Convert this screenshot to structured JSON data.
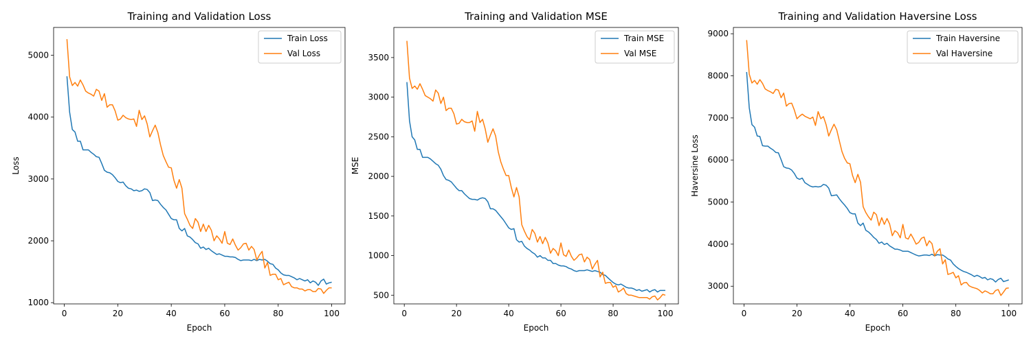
{
  "colors": {
    "train": "#1f77b4",
    "val": "#ff7f0e"
  },
  "chart_data": [
    {
      "type": "line",
      "title": "Training and Validation Loss",
      "xlabel": "Epoch",
      "ylabel": "Loss",
      "xlim": [
        -4,
        105
      ],
      "ylim": [
        980,
        5450
      ],
      "xticks": [
        0,
        20,
        40,
        60,
        80,
        100
      ],
      "yticks": [
        1000,
        2000,
        3000,
        4000,
        5000
      ],
      "legend": "top-right",
      "grid": false,
      "x": [
        1,
        2,
        3,
        4,
        5,
        6,
        7,
        8,
        9,
        10,
        11,
        12,
        13,
        14,
        15,
        16,
        17,
        18,
        19,
        20,
        21,
        22,
        23,
        24,
        25,
        26,
        27,
        28,
        29,
        30,
        31,
        32,
        33,
        34,
        35,
        36,
        37,
        38,
        39,
        40,
        41,
        42,
        43,
        44,
        45,
        46,
        47,
        48,
        49,
        50,
        51,
        52,
        53,
        54,
        55,
        56,
        57,
        58,
        59,
        60,
        61,
        62,
        63,
        64,
        65,
        66,
        67,
        68,
        69,
        70,
        71,
        72,
        73,
        74,
        75,
        76,
        77,
        78,
        79,
        80,
        81,
        82,
        83,
        84,
        85,
        86,
        87,
        88,
        89,
        90,
        91,
        92,
        93,
        94,
        95,
        96,
        97,
        98,
        99,
        100
      ],
      "series": [
        {
          "name": "Train Loss",
          "color": "#1f77b4",
          "values": [
            4660,
            4080,
            3800,
            3760,
            3610,
            3610,
            3470,
            3470,
            3470,
            3430,
            3400,
            3360,
            3350,
            3250,
            3140,
            3110,
            3100,
            3070,
            3020,
            2960,
            2940,
            2950,
            2890,
            2850,
            2840,
            2810,
            2820,
            2800,
            2810,
            2840,
            2830,
            2780,
            2650,
            2660,
            2650,
            2590,
            2540,
            2500,
            2430,
            2360,
            2340,
            2340,
            2200,
            2160,
            2200,
            2080,
            2060,
            2020,
            1970,
            1950,
            1880,
            1900,
            1860,
            1880,
            1840,
            1810,
            1780,
            1790,
            1770,
            1750,
            1750,
            1740,
            1740,
            1730,
            1700,
            1680,
            1690,
            1690,
            1690,
            1680,
            1700,
            1680,
            1700,
            1690,
            1700,
            1670,
            1630,
            1620,
            1560,
            1530,
            1480,
            1450,
            1440,
            1440,
            1420,
            1400,
            1370,
            1390,
            1370,
            1350,
            1370,
            1320,
            1350,
            1330,
            1280,
            1350,
            1380,
            1300,
            1320,
            1330
          ]
        },
        {
          "name": "Val Loss",
          "color": "#ff7f0e",
          "values": [
            5260,
            4650,
            4510,
            4560,
            4500,
            4600,
            4520,
            4420,
            4390,
            4370,
            4340,
            4450,
            4420,
            4270,
            4380,
            4160,
            4200,
            4200,
            4100,
            3950,
            3970,
            4030,
            3990,
            3970,
            3960,
            3970,
            3850,
            4110,
            3960,
            4020,
            3890,
            3680,
            3780,
            3870,
            3750,
            3550,
            3380,
            3280,
            3190,
            3180,
            2980,
            2850,
            2990,
            2850,
            2440,
            2350,
            2250,
            2200,
            2360,
            2300,
            2150,
            2270,
            2150,
            2250,
            2170,
            2000,
            2080,
            2030,
            1960,
            2150,
            1960,
            1940,
            2030,
            1930,
            1850,
            1890,
            1950,
            1960,
            1850,
            1910,
            1860,
            1690,
            1770,
            1830,
            1560,
            1650,
            1440,
            1460,
            1460,
            1370,
            1390,
            1290,
            1310,
            1330,
            1260,
            1240,
            1240,
            1220,
            1220,
            1190,
            1210,
            1210,
            1180,
            1180,
            1230,
            1220,
            1150,
            1200,
            1240,
            1240
          ]
        }
      ]
    },
    {
      "type": "line",
      "title": "Training and Validation MSE",
      "xlabel": "Epoch",
      "ylabel": "MSE",
      "xlim": [
        -4,
        105
      ],
      "ylim": [
        390,
        3880
      ],
      "xticks": [
        0,
        20,
        40,
        60,
        80,
        100
      ],
      "yticks": [
        500,
        1000,
        1500,
        2000,
        2500,
        3000,
        3500
      ],
      "legend": "top-right",
      "grid": false,
      "x": [
        1,
        2,
        3,
        4,
        5,
        6,
        7,
        8,
        9,
        10,
        11,
        12,
        13,
        14,
        15,
        16,
        17,
        18,
        19,
        20,
        21,
        22,
        23,
        24,
        25,
        26,
        27,
        28,
        29,
        30,
        31,
        32,
        33,
        34,
        35,
        36,
        37,
        38,
        39,
        40,
        41,
        42,
        43,
        44,
        45,
        46,
        47,
        48,
        49,
        50,
        51,
        52,
        53,
        54,
        55,
        56,
        57,
        58,
        59,
        60,
        61,
        62,
        63,
        64,
        65,
        66,
        67,
        68,
        69,
        70,
        71,
        72,
        73,
        74,
        75,
        76,
        77,
        78,
        79,
        80,
        81,
        82,
        83,
        84,
        85,
        86,
        87,
        88,
        89,
        90,
        91,
        92,
        93,
        94,
        95,
        96,
        97,
        98,
        99,
        100
      ],
      "series": [
        {
          "name": "Train MSE",
          "color": "#1f77b4",
          "values": [
            3190,
            2700,
            2500,
            2460,
            2340,
            2340,
            2240,
            2240,
            2240,
            2220,
            2190,
            2160,
            2140,
            2090,
            2010,
            1960,
            1950,
            1930,
            1890,
            1850,
            1820,
            1820,
            1780,
            1750,
            1720,
            1710,
            1710,
            1700,
            1720,
            1730,
            1720,
            1680,
            1590,
            1590,
            1570,
            1530,
            1490,
            1450,
            1400,
            1350,
            1330,
            1340,
            1200,
            1170,
            1180,
            1120,
            1090,
            1070,
            1040,
            1020,
            980,
            1000,
            970,
            970,
            940,
            940,
            900,
            900,
            880,
            870,
            870,
            860,
            840,
            830,
            810,
            800,
            810,
            810,
            810,
            820,
            810,
            800,
            810,
            800,
            790,
            760,
            750,
            720,
            690,
            660,
            640,
            630,
            640,
            620,
            600,
            590,
            590,
            580,
            560,
            570,
            550,
            560,
            570,
            540,
            560,
            570,
            540,
            560,
            560,
            560
          ]
        },
        {
          "name": "Val MSE",
          "color": "#ff7f0e",
          "values": [
            3710,
            3240,
            3110,
            3140,
            3100,
            3170,
            3100,
            3020,
            3000,
            2980,
            2950,
            3090,
            3050,
            2920,
            3000,
            2830,
            2860,
            2860,
            2790,
            2660,
            2670,
            2720,
            2690,
            2680,
            2680,
            2700,
            2570,
            2820,
            2680,
            2720,
            2600,
            2430,
            2520,
            2600,
            2510,
            2310,
            2180,
            2090,
            2010,
            2010,
            1860,
            1740,
            1860,
            1740,
            1390,
            1310,
            1240,
            1200,
            1330,
            1280,
            1170,
            1240,
            1150,
            1230,
            1160,
            1030,
            1090,
            1060,
            1000,
            1160,
            1010,
            990,
            1070,
            990,
            940,
            970,
            1010,
            1020,
            920,
            980,
            950,
            830,
            890,
            940,
            730,
            790,
            650,
            660,
            660,
            600,
            620,
            540,
            560,
            590,
            520,
            500,
            500,
            490,
            480,
            470,
            470,
            470,
            470,
            450,
            480,
            490,
            440,
            470,
            510,
            500
          ]
        }
      ]
    },
    {
      "type": "line",
      "title": "Training and Validation Haversine Loss",
      "xlabel": "Epoch",
      "ylabel": "Haversine Loss",
      "xlim": [
        -4,
        105
      ],
      "ylim": [
        2580,
        9150
      ],
      "xticks": [
        0,
        20,
        40,
        60,
        80,
        100
      ],
      "yticks": [
        3000,
        4000,
        5000,
        6000,
        7000,
        8000,
        9000
      ],
      "legend": "top-right",
      "grid": false,
      "x": [
        1,
        2,
        3,
        4,
        5,
        6,
        7,
        8,
        9,
        10,
        11,
        12,
        13,
        14,
        15,
        16,
        17,
        18,
        19,
        20,
        21,
        22,
        23,
        24,
        25,
        26,
        27,
        28,
        29,
        30,
        31,
        32,
        33,
        34,
        35,
        36,
        37,
        38,
        39,
        40,
        41,
        42,
        43,
        44,
        45,
        46,
        47,
        48,
        49,
        50,
        51,
        52,
        53,
        54,
        55,
        56,
        57,
        58,
        59,
        60,
        61,
        62,
        63,
        64,
        65,
        66,
        67,
        68,
        69,
        70,
        71,
        72,
        73,
        74,
        75,
        76,
        77,
        78,
        79,
        80,
        81,
        82,
        83,
        84,
        85,
        86,
        87,
        88,
        89,
        90,
        91,
        92,
        93,
        94,
        95,
        96,
        97,
        98,
        99,
        100
      ],
      "series": [
        {
          "name": "Train Haversine",
          "color": "#1f77b4",
          "values": [
            8090,
            7240,
            6840,
            6780,
            6570,
            6560,
            6340,
            6330,
            6330,
            6280,
            6240,
            6180,
            6170,
            6010,
            5840,
            5810,
            5800,
            5760,
            5680,
            5570,
            5540,
            5570,
            5460,
            5420,
            5380,
            5360,
            5370,
            5360,
            5370,
            5420,
            5400,
            5330,
            5150,
            5160,
            5170,
            5080,
            5000,
            4930,
            4850,
            4750,
            4720,
            4720,
            4500,
            4440,
            4500,
            4330,
            4290,
            4230,
            4160,
            4110,
            4020,
            4050,
            3990,
            4020,
            3960,
            3920,
            3880,
            3880,
            3860,
            3830,
            3830,
            3830,
            3800,
            3770,
            3740,
            3720,
            3730,
            3740,
            3740,
            3730,
            3760,
            3720,
            3750,
            3740,
            3740,
            3700,
            3650,
            3620,
            3530,
            3470,
            3420,
            3380,
            3350,
            3330,
            3300,
            3270,
            3230,
            3260,
            3230,
            3190,
            3210,
            3150,
            3180,
            3160,
            3100,
            3160,
            3190,
            3110,
            3130,
            3150
          ]
        },
        {
          "name": "Val Haversine",
          "color": "#ff7f0e",
          "values": [
            8850,
            8040,
            7830,
            7890,
            7800,
            7910,
            7820,
            7690,
            7650,
            7620,
            7580,
            7680,
            7660,
            7480,
            7590,
            7280,
            7340,
            7350,
            7190,
            6980,
            7040,
            7090,
            7040,
            7010,
            6980,
            7020,
            6820,
            7150,
            6980,
            7030,
            6840,
            6570,
            6720,
            6850,
            6720,
            6460,
            6200,
            6040,
            5930,
            5910,
            5630,
            5460,
            5660,
            5470,
            4890,
            4750,
            4650,
            4570,
            4760,
            4700,
            4440,
            4630,
            4470,
            4610,
            4480,
            4200,
            4320,
            4270,
            4150,
            4470,
            4150,
            4120,
            4240,
            4130,
            4000,
            4040,
            4140,
            4170,
            3960,
            4080,
            4010,
            3720,
            3830,
            3890,
            3530,
            3630,
            3280,
            3300,
            3330,
            3200,
            3250,
            3030,
            3080,
            3090,
            3010,
            2980,
            2960,
            2940,
            2900,
            2840,
            2890,
            2860,
            2820,
            2820,
            2900,
            2920,
            2780,
            2860,
            2950,
            2960
          ]
        }
      ]
    }
  ]
}
